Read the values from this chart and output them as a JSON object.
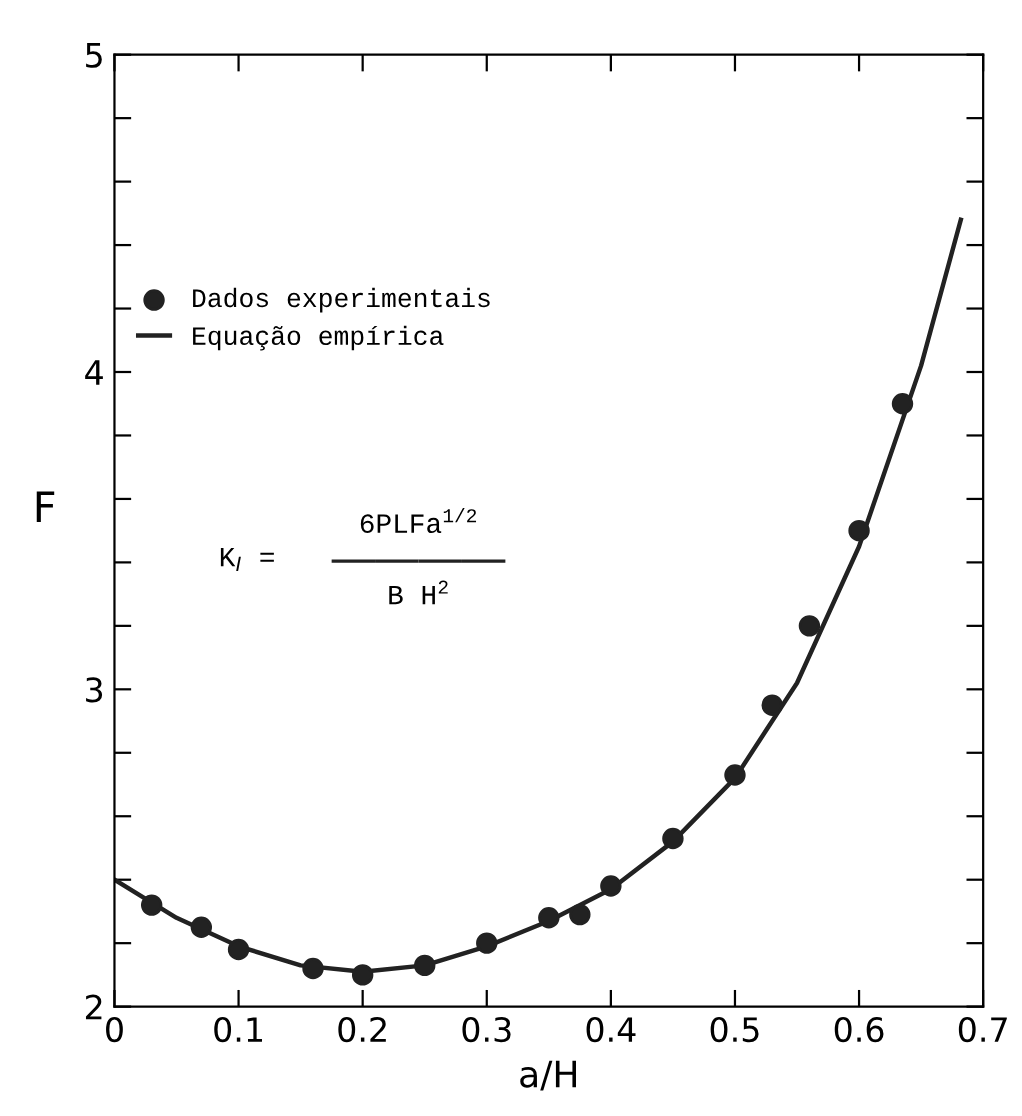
{
  "chart_data": {
    "type": "scatter",
    "xlabel": "a/H",
    "ylabel": "F",
    "xlim": [
      0,
      0.7
    ],
    "ylim": [
      2,
      5
    ],
    "xticks": [
      0,
      0.1,
      0.2,
      0.3,
      0.4,
      0.5,
      0.6,
      0.7
    ],
    "yticks": [
      2,
      {
        "value": 2.2,
        "label": null
      },
      {
        "value": 2.4,
        "label": null
      },
      {
        "value": 2.6,
        "label": null
      },
      {
        "value": 2.8,
        "label": null
      },
      3,
      {
        "value": 3.2,
        "label": null
      },
      {
        "value": 3.4,
        "label": null
      },
      {
        "value": 3.6,
        "label": null
      },
      {
        "value": 3.8,
        "label": null
      },
      4,
      {
        "value": 4.2,
        "label": null
      },
      {
        "value": 4.4,
        "label": null
      },
      {
        "value": 4.6,
        "label": null
      },
      {
        "value": 4.8,
        "label": null
      },
      5
    ],
    "grid": false,
    "legend": "top left",
    "series": [
      {
        "name": "Dados experimentais",
        "color": "#222222",
        "marker": "circle",
        "x": [
          0.03,
          0.07,
          0.1,
          0.16,
          0.2,
          0.25,
          0.3,
          0.35,
          0.375,
          0.4,
          0.45,
          0.5,
          0.53,
          0.56,
          0.6,
          0.635
        ],
        "values": [
          2.32,
          2.25,
          2.18,
          2.12,
          2.1,
          2.13,
          2.2,
          2.28,
          2.29,
          2.38,
          2.53,
          2.73,
          2.95,
          3.2,
          3.5,
          3.9
        ]
      },
      {
        "name": "Equação empírica",
        "type": "line",
        "color": "#222222",
        "line_style": "solid",
        "x": [
          0,
          0.05,
          0.1,
          0.15,
          0.2,
          0.25,
          0.3,
          0.35,
          0.4,
          0.45,
          0.5,
          0.55,
          0.6,
          0.65,
          0.682
        ],
        "values": [
          2.4,
          2.28,
          2.19,
          2.13,
          2.11,
          2.13,
          2.19,
          2.27,
          2.37,
          2.52,
          2.72,
          3.02,
          3.45,
          4.02,
          4.48
        ]
      }
    ],
    "annotations": [
      "K$_{I}$ =",
      "6PLFa$^{1/2}$",
      "B H$^{2}$"
    ]
  }
}
